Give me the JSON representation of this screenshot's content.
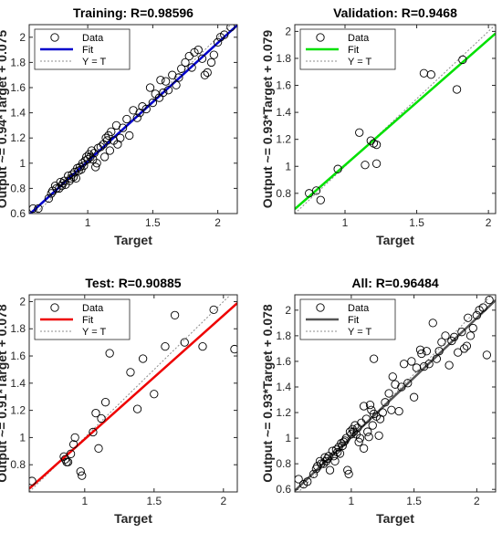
{
  "colors": {
    "training_fit": "#0000cc",
    "validation_fit": "#00e000",
    "test_fit": "#ee0000",
    "all_fit": "#555555",
    "identity_line": "#8c8c8c",
    "marker": "#000000"
  },
  "chart_data": [
    {
      "type": "scatter",
      "title": "Training: R=0.98596",
      "xlabel": "Target",
      "ylabel": "Output ~= 0.94*Target + 0.075",
      "xlim": [
        0.55,
        2.15
      ],
      "ylim": [
        0.6,
        2.1
      ],
      "xticks": [
        1,
        1.5,
        2
      ],
      "yticks": [
        0.6,
        0.8,
        1,
        1.2,
        1.4,
        1.6,
        1.8,
        2
      ],
      "legend": [
        "Data",
        "Fit",
        "Y = T"
      ],
      "legend_position": "top-left",
      "fit": {
        "slope": 0.94,
        "intercept": 0.075,
        "color": "#0000cc"
      },
      "series": [
        {
          "name": "Data",
          "points": [
            [
              0.58,
              0.64
            ],
            [
              0.62,
              0.64
            ],
            [
              0.7,
              0.72
            ],
            [
              0.72,
              0.76
            ],
            [
              0.73,
              0.78
            ],
            [
              0.75,
              0.82
            ],
            [
              0.76,
              0.8
            ],
            [
              0.78,
              0.8
            ],
            [
              0.79,
              0.85
            ],
            [
              0.8,
              0.82
            ],
            [
              0.81,
              0.84
            ],
            [
              0.82,
              0.86
            ],
            [
              0.83,
              0.83
            ],
            [
              0.85,
              0.9
            ],
            [
              0.86,
              0.86
            ],
            [
              0.87,
              0.88
            ],
            [
              0.88,
              0.91
            ],
            [
              0.89,
              0.89
            ],
            [
              0.9,
              0.93
            ],
            [
              0.91,
              0.88
            ],
            [
              0.92,
              0.96
            ],
            [
              0.93,
              0.94
            ],
            [
              0.94,
              0.97
            ],
            [
              0.95,
              0.95
            ],
            [
              0.96,
              1.0
            ],
            [
              0.97,
              0.98
            ],
            [
              0.98,
              1.02
            ],
            [
              0.99,
              1.05
            ],
            [
              1.0,
              1.03
            ],
            [
              1.01,
              1.07
            ],
            [
              1.02,
              1.05
            ],
            [
              1.03,
              1.1
            ],
            [
              1.04,
              1.03
            ],
            [
              1.05,
              1.08
            ],
            [
              1.06,
              0.97
            ],
            [
              1.07,
              1.0
            ],
            [
              1.08,
              1.12
            ],
            [
              1.1,
              1.13
            ],
            [
              1.12,
              1.15
            ],
            [
              1.13,
              1.05
            ],
            [
              1.14,
              1.2
            ],
            [
              1.15,
              1.18
            ],
            [
              1.16,
              1.22
            ],
            [
              1.17,
              1.1
            ],
            [
              1.18,
              1.25
            ],
            [
              1.2,
              1.18
            ],
            [
              1.22,
              1.3
            ],
            [
              1.23,
              1.15
            ],
            [
              1.25,
              1.2
            ],
            [
              1.27,
              1.28
            ],
            [
              1.3,
              1.35
            ],
            [
              1.32,
              1.22
            ],
            [
              1.35,
              1.42
            ],
            [
              1.38,
              1.36
            ],
            [
              1.4,
              1.4
            ],
            [
              1.42,
              1.45
            ],
            [
              1.45,
              1.43
            ],
            [
              1.48,
              1.6
            ],
            [
              1.5,
              1.48
            ],
            [
              1.52,
              1.55
            ],
            [
              1.55,
              1.52
            ],
            [
              1.56,
              1.66
            ],
            [
              1.58,
              1.56
            ],
            [
              1.6,
              1.65
            ],
            [
              1.62,
              1.58
            ],
            [
              1.65,
              1.7
            ],
            [
              1.68,
              1.62
            ],
            [
              1.7,
              1.68
            ],
            [
              1.72,
              1.75
            ],
            [
              1.75,
              1.8
            ],
            [
              1.78,
              1.85
            ],
            [
              1.8,
              1.76
            ],
            [
              1.82,
              1.88
            ],
            [
              1.85,
              1.9
            ],
            [
              1.88,
              1.83
            ],
            [
              1.9,
              1.7
            ],
            [
              1.92,
              1.72
            ],
            [
              1.95,
              1.8
            ],
            [
              1.97,
              1.86
            ],
            [
              2.0,
              1.96
            ],
            [
              2.02,
              2.0
            ],
            [
              2.05,
              2.02
            ],
            [
              2.1,
              2.08
            ]
          ]
        }
      ]
    },
    {
      "type": "scatter",
      "title": "Validation: R=0.9468",
      "xlabel": "Target",
      "ylabel": "Output ~= 0.93*Target + 0.079",
      "xlim": [
        0.65,
        2.05
      ],
      "ylim": [
        0.65,
        2.05
      ],
      "xticks": [
        1,
        1.5,
        2
      ],
      "yticks": [
        0.8,
        1,
        1.2,
        1.4,
        1.6,
        1.8,
        2
      ],
      "legend": [
        "Data",
        "Fit",
        "Y = T"
      ],
      "legend_position": "top-left",
      "fit": {
        "slope": 0.93,
        "intercept": 0.079,
        "color": "#00e000"
      },
      "series": [
        {
          "name": "Data",
          "points": [
            [
              0.75,
              0.8
            ],
            [
              0.8,
              0.82
            ],
            [
              0.83,
              0.75
            ],
            [
              0.95,
              0.98
            ],
            [
              1.1,
              1.25
            ],
            [
              1.14,
              1.01
            ],
            [
              1.18,
              1.19
            ],
            [
              1.2,
              1.17
            ],
            [
              1.22,
              1.16
            ],
            [
              1.22,
              1.02
            ],
            [
              1.55,
              1.69
            ],
            [
              1.6,
              1.68
            ],
            [
              1.78,
              1.57
            ],
            [
              1.82,
              1.79
            ]
          ]
        }
      ]
    },
    {
      "type": "scatter",
      "title": "Test: R=0.90885",
      "xlabel": "Target",
      "ylabel": "Output ~= 0.91*Target + 0.078",
      "xlim": [
        0.6,
        2.1
      ],
      "ylim": [
        0.6,
        2.05
      ],
      "xticks": [
        1,
        1.5,
        2
      ],
      "yticks": [
        0.8,
        1,
        1.2,
        1.4,
        1.6,
        1.8,
        2
      ],
      "legend": [
        "Data",
        "Fit",
        "Y = T"
      ],
      "legend_position": "top-left",
      "fit": {
        "slope": 0.91,
        "intercept": 0.078,
        "color": "#ee0000"
      },
      "series": [
        {
          "name": "Data",
          "points": [
            [
              0.62,
              0.68
            ],
            [
              0.85,
              0.86
            ],
            [
              0.86,
              0.84
            ],
            [
              0.87,
              0.82
            ],
            [
              0.88,
              0.82
            ],
            [
              0.9,
              0.88
            ],
            [
              0.92,
              0.95
            ],
            [
              0.93,
              1.0
            ],
            [
              0.97,
              0.75
            ],
            [
              0.98,
              0.72
            ],
            [
              1.06,
              1.04
            ],
            [
              1.08,
              1.18
            ],
            [
              1.1,
              0.92
            ],
            [
              1.12,
              1.14
            ],
            [
              1.15,
              1.26
            ],
            [
              1.18,
              1.62
            ],
            [
              1.33,
              1.48
            ],
            [
              1.38,
              1.21
            ],
            [
              1.42,
              1.58
            ],
            [
              1.5,
              1.32
            ],
            [
              1.58,
              1.67
            ],
            [
              1.65,
              1.9
            ],
            [
              1.72,
              1.7
            ],
            [
              1.85,
              1.67
            ],
            [
              1.93,
              1.94
            ],
            [
              2.08,
              1.65
            ]
          ]
        }
      ]
    },
    {
      "type": "scatter",
      "title": "All: R=0.96484",
      "xlabel": "Target",
      "ylabel": "Output ~= 0.93*Target + 0.078",
      "xlim": [
        0.55,
        2.15
      ],
      "ylim": [
        0.58,
        2.12
      ],
      "xticks": [
        1,
        1.5,
        2
      ],
      "yticks": [
        0.6,
        0.8,
        1,
        1.2,
        1.4,
        1.6,
        1.8,
        2
      ],
      "legend": [
        "Data",
        "Fit",
        "Y = T"
      ],
      "legend_position": "top-left",
      "fit": {
        "slope": 0.93,
        "intercept": 0.078,
        "color": "#555555"
      },
      "series": [
        {
          "name": "Data",
          "points": [
            [
              0.58,
              0.68
            ],
            [
              0.62,
              0.64
            ],
            [
              0.65,
              0.66
            ],
            [
              0.7,
              0.72
            ],
            [
              0.72,
              0.76
            ],
            [
              0.73,
              0.78
            ],
            [
              0.75,
              0.82
            ],
            [
              0.76,
              0.8
            ],
            [
              0.78,
              0.8
            ],
            [
              0.79,
              0.85
            ],
            [
              0.8,
              0.82
            ],
            [
              0.81,
              0.84
            ],
            [
              0.82,
              0.86
            ],
            [
              0.83,
              0.75
            ],
            [
              0.85,
              0.9
            ],
            [
              0.86,
              0.86
            ],
            [
              0.87,
              0.82
            ],
            [
              0.88,
              0.91
            ],
            [
              0.89,
              0.89
            ],
            [
              0.9,
              0.93
            ],
            [
              0.91,
              0.88
            ],
            [
              0.92,
              0.96
            ],
            [
              0.93,
              0.94
            ],
            [
              0.94,
              0.97
            ],
            [
              0.95,
              0.98
            ],
            [
              0.96,
              1.0
            ],
            [
              0.97,
              0.75
            ],
            [
              0.98,
              0.72
            ],
            [
              0.99,
              1.05
            ],
            [
              1.0,
              1.03
            ],
            [
              1.01,
              1.07
            ],
            [
              1.02,
              1.05
            ],
            [
              1.03,
              1.1
            ],
            [
              1.04,
              1.03
            ],
            [
              1.05,
              1.08
            ],
            [
              1.06,
              0.97
            ],
            [
              1.07,
              1.0
            ],
            [
              1.08,
              1.12
            ],
            [
              1.1,
              1.25
            ],
            [
              1.1,
              0.92
            ],
            [
              1.12,
              1.15
            ],
            [
              1.13,
              1.05
            ],
            [
              1.14,
              1.01
            ],
            [
              1.15,
              1.26
            ],
            [
              1.16,
              1.22
            ],
            [
              1.17,
              1.1
            ],
            [
              1.18,
              1.19
            ],
            [
              1.2,
              1.17
            ],
            [
              1.22,
              1.02
            ],
            [
              1.18,
              1.62
            ],
            [
              1.23,
              1.15
            ],
            [
              1.25,
              1.2
            ],
            [
              1.27,
              1.28
            ],
            [
              1.3,
              1.35
            ],
            [
              1.32,
              1.22
            ],
            [
              1.33,
              1.48
            ],
            [
              1.35,
              1.42
            ],
            [
              1.38,
              1.21
            ],
            [
              1.4,
              1.4
            ],
            [
              1.42,
              1.58
            ],
            [
              1.45,
              1.43
            ],
            [
              1.48,
              1.6
            ],
            [
              1.5,
              1.32
            ],
            [
              1.52,
              1.55
            ],
            [
              1.55,
              1.69
            ],
            [
              1.56,
              1.66
            ],
            [
              1.58,
              1.56
            ],
            [
              1.6,
              1.68
            ],
            [
              1.62,
              1.58
            ],
            [
              1.65,
              1.9
            ],
            [
              1.68,
              1.62
            ],
            [
              1.7,
              1.68
            ],
            [
              1.72,
              1.75
            ],
            [
              1.75,
              1.8
            ],
            [
              1.78,
              1.57
            ],
            [
              1.8,
              1.76
            ],
            [
              1.82,
              1.79
            ],
            [
              1.85,
              1.67
            ],
            [
              1.88,
              1.83
            ],
            [
              1.9,
              1.7
            ],
            [
              1.92,
              1.72
            ],
            [
              1.93,
              1.94
            ],
            [
              1.95,
              1.8
            ],
            [
              1.97,
              1.86
            ],
            [
              2.0,
              1.96
            ],
            [
              2.02,
              2.0
            ],
            [
              2.05,
              2.02
            ],
            [
              2.08,
              1.65
            ],
            [
              2.1,
              2.08
            ]
          ]
        }
      ]
    }
  ]
}
